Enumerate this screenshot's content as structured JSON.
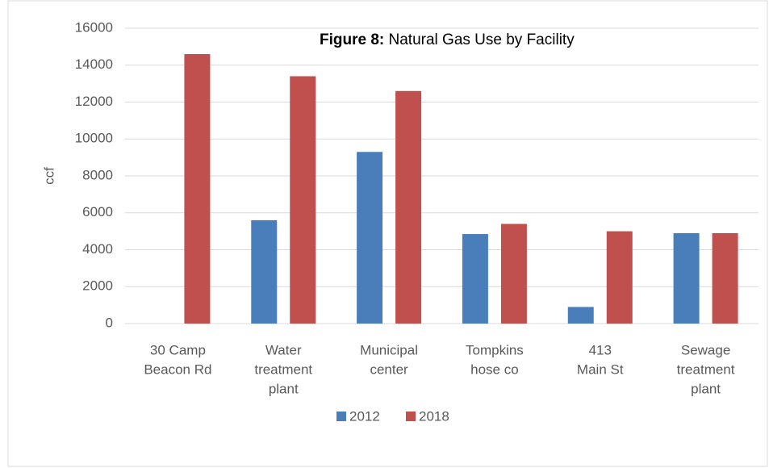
{
  "chart_data": {
    "type": "bar",
    "figure_label": "Figure 8:",
    "title": "Natural Gas Use by Facility",
    "y_label": "ccf",
    "categories": [
      [
        "30 Camp",
        "Beacon Rd"
      ],
      [
        "Water",
        "treatment",
        "plant"
      ],
      [
        "Municipal",
        "center"
      ],
      [
        "Tompkins",
        "hose co"
      ],
      [
        "413",
        "Main St"
      ],
      [
        "Sewage",
        "treatment",
        "plant"
      ]
    ],
    "series": [
      {
        "name": "2012",
        "color": "#4a7ebb",
        "values": [
          0,
          5600,
          9300,
          4850,
          900,
          4900
        ]
      },
      {
        "name": "2018",
        "color": "#c0504d",
        "values": [
          14600,
          13400,
          12600,
          5400,
          5000,
          4900
        ]
      }
    ],
    "ylim": [
      0,
      16000
    ],
    "yticks": [
      0,
      2000,
      4000,
      6000,
      8000,
      10000,
      12000,
      14000,
      16000
    ],
    "grid": true,
    "legend": "bottom"
  }
}
